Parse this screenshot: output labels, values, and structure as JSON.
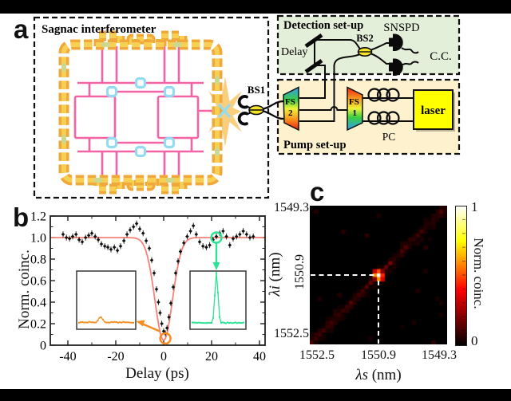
{
  "figure": {
    "panel_a_label": "a",
    "panel_b_label": "b",
    "panel_c_label": "c"
  },
  "panel_a": {
    "sagnac_title": "Sagnac interferometer",
    "detection_title": "Detection set-up",
    "pump_title": "Pump set-up",
    "labels": {
      "bs1": "BS1",
      "bs2": "BS2",
      "delay": "Delay",
      "snspd": "SNSPD",
      "cc": "C.C.",
      "fs": "FS",
      "fs2_num": "2",
      "fs1_num": "1",
      "pc": "PC",
      "laser": "laser"
    },
    "colors": {
      "detection_bg": "#e4efda",
      "pump_bg": "#fdf1ce",
      "laser_fill": "#ffff00",
      "pad_orange": "#f0a83a",
      "pad_inner": "#f7cf52",
      "pad_green": "#cbd88e",
      "waveguide_pink": "#f464a4",
      "coupler_blue": "#92dbf3",
      "star_orange": "#f7c568",
      "bs_yellow": "#f5e327"
    }
  },
  "chart_data": [
    {
      "panel": "b",
      "type": "scatter",
      "xlabel": "Delay (ps)",
      "ylabel": "Norm. coinc.",
      "xlim": [
        -47,
        42
      ],
      "ylim": [
        0,
        1.2
      ],
      "xticks": [
        -40,
        -20,
        0,
        20,
        40
      ],
      "yticks": [
        0,
        0.2,
        0.4,
        0.6,
        0.8,
        1.0,
        1.2
      ],
      "error_bar": 0.028,
      "fit": {
        "type": "gaussian_dip",
        "baseline": 1.0,
        "depth": 0.955,
        "width_ps": 5.2,
        "color": "#f88078"
      },
      "points": [
        [
          -42,
          1.03
        ],
        [
          -40.6,
          1.0
        ],
        [
          -39.3,
          0.99
        ],
        [
          -38,
          1.01
        ],
        [
          -36.6,
          1.03
        ],
        [
          -35.3,
          0.98
        ],
        [
          -34,
          0.96
        ],
        [
          -32.6,
          1.0
        ],
        [
          -31.3,
          1.02
        ],
        [
          -30,
          1.04
        ],
        [
          -28.6,
          1.01
        ],
        [
          -27.3,
          0.98
        ],
        [
          -26,
          0.94
        ],
        [
          -24.6,
          0.92
        ],
        [
          -23.3,
          0.91
        ],
        [
          -22,
          0.89
        ],
        [
          -20.6,
          0.91
        ],
        [
          -19.3,
          0.88
        ],
        [
          -18,
          0.92
        ],
        [
          -16.6,
          0.97
        ],
        [
          -15.3,
          1.03
        ],
        [
          -14,
          1.07
        ],
        [
          -12.6,
          1.1
        ],
        [
          -11.3,
          1.13
        ],
        [
          -10,
          1.08
        ],
        [
          -8.6,
          1.04
        ],
        [
          -7.3,
          0.97
        ],
        [
          -6,
          0.9
        ],
        [
          -5,
          0.79
        ],
        [
          -4,
          0.67
        ],
        [
          -3,
          0.52
        ],
        [
          -2.2,
          0.4
        ],
        [
          -1.5,
          0.3
        ],
        [
          -0.8,
          0.2
        ],
        [
          0,
          0.13
        ],
        [
          0.7,
          0.11
        ],
        [
          1.4,
          0.16
        ],
        [
          2.2,
          0.26
        ],
        [
          3,
          0.39
        ],
        [
          4,
          0.54
        ],
        [
          5,
          0.67
        ],
        [
          6,
          0.78
        ],
        [
          7,
          0.87
        ],
        [
          8.4,
          0.95
        ],
        [
          9.8,
          1.01
        ],
        [
          11.2,
          1.06
        ],
        [
          12.4,
          1.11
        ],
        [
          13.6,
          1.03
        ],
        [
          15,
          0.96
        ],
        [
          16.4,
          0.92
        ],
        [
          17.8,
          0.91
        ],
        [
          19.2,
          0.93
        ],
        [
          20.6,
          0.98
        ],
        [
          22,
          1.01
        ],
        [
          23.4,
          1.04
        ],
        [
          24.8,
          1.06
        ],
        [
          26.2,
          1.01
        ],
        [
          27.6,
          0.93
        ],
        [
          29,
          0.99
        ],
        [
          30.4,
          1.01
        ],
        [
          31.8,
          1.03
        ],
        [
          33.2,
          1.06
        ],
        [
          34.6,
          1.03
        ],
        [
          36,
          1.0
        ],
        [
          37.4,
          1.01
        ]
      ],
      "insets": [
        {
          "side": "left",
          "trace_color": "#f68c1f",
          "shape": "flat_with_small_bump",
          "baseline_frac": 0.12,
          "bump_pos_frac": 0.4,
          "bump_height_frac": 0.09
        },
        {
          "side": "right",
          "trace_color": "#2be393",
          "shape": "narrow_peak",
          "baseline_frac": 0.11,
          "peak_pos_frac": 0.47,
          "peak_height_frac": 0.86
        }
      ],
      "annotations": [
        {
          "type": "circle",
          "color": "#2be393",
          "x": 22,
          "y": 1.0,
          "arrow_to": "right-inset-peak"
        },
        {
          "type": "circle",
          "color": "#f68c1f",
          "x": 0.7,
          "y": 0.1,
          "arrow_to": "left-inset-trace"
        }
      ]
    },
    {
      "panel": "c",
      "type": "heatmap",
      "xlabel_sym": "λs",
      "xlabel_unit": " (nm)",
      "ylabel_sym": "λi",
      "ylabel_unit": " (nm)",
      "x_axis": {
        "ticks": [
          "1552.5",
          "1550.9",
          "1549.3"
        ],
        "reversed": true
      },
      "y_axis": {
        "ticks": [
          "1549.3",
          "1550.9",
          "1552.5"
        ]
      },
      "grid": 35,
      "background_value": 0,
      "diagonal_band": {
        "orientation": "anti-diagonal",
        "intensity": 0.1
      },
      "peak": {
        "lambda_s": 1550.9,
        "lambda_i": 1550.9,
        "value": 1
      },
      "crosshair": {
        "x": "1550.9",
        "y": "1550.9",
        "style": "white-dashed"
      },
      "colorbar": {
        "label": "Norm. coinc.",
        "min": "0",
        "max": "1",
        "colormap": "hot"
      }
    }
  ]
}
